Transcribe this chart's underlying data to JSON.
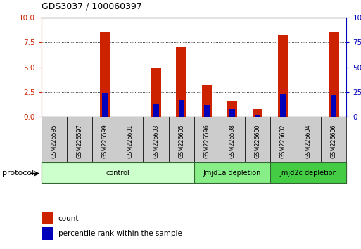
{
  "title": "GDS3037 / 100060397",
  "categories": [
    "GSM226595",
    "GSM226597",
    "GSM226599",
    "GSM226601",
    "GSM226603",
    "GSM226605",
    "GSM226596",
    "GSM226598",
    "GSM226600",
    "GSM226602",
    "GSM226604",
    "GSM226606"
  ],
  "count_values": [
    0,
    0,
    8.6,
    0,
    5.0,
    7.0,
    3.2,
    1.6,
    0.8,
    8.2,
    0,
    8.6
  ],
  "percentile_values": [
    0,
    0,
    2.4,
    0,
    1.3,
    1.7,
    1.2,
    0.8,
    0.2,
    2.3,
    0,
    2.2
  ],
  "groups": [
    {
      "label": "control",
      "start": 0,
      "end": 5,
      "color": "#ccffcc",
      "edge": "#77bb77"
    },
    {
      "label": "Jmjd1a depletion",
      "start": 6,
      "end": 8,
      "color": "#88ee88",
      "edge": "#336633"
    },
    {
      "label": "Jmjd2c depletion",
      "start": 9,
      "end": 11,
      "color": "#44cc44",
      "edge": "#336633"
    }
  ],
  "ylim_left": [
    0,
    10
  ],
  "ylim_right": [
    0,
    100
  ],
  "yticks_left": [
    0,
    2.5,
    5,
    7.5,
    10
  ],
  "yticks_right": [
    0,
    25,
    50,
    75,
    100
  ],
  "bar_color_count": "#cc2200",
  "bar_color_percentile": "#0000bb",
  "bar_width": 0.4,
  "legend_count": "count",
  "legend_percentile": "percentile rank within the sample",
  "protocol_label": "protocol",
  "ycolor_left": "#cc2200",
  "ycolor_right": "#0000bb",
  "label_bg": "#cccccc",
  "fig_bg": "#ffffff"
}
